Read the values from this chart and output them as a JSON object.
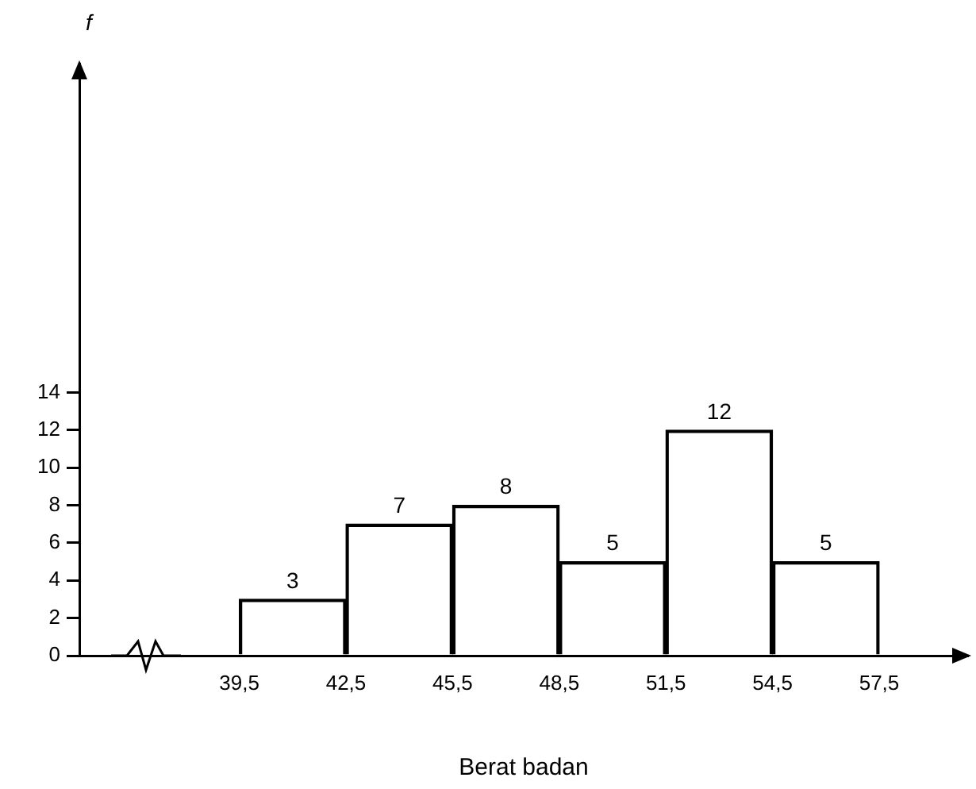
{
  "chart_data": {
    "type": "histogram",
    "xlabel": "Berat badan",
    "ylabel": "f",
    "bins": [
      39.5,
      42.5,
      45.5,
      48.5,
      51.5,
      54.5,
      57.5
    ],
    "values": [
      3,
      7,
      8,
      5,
      12,
      5
    ],
    "color": "#000000",
    "xlim": [
      35,
      60
    ],
    "xticks": [
      {
        "value": 39.5,
        "label": "39,5"
      },
      {
        "value": 42.5,
        "label": "42,5"
      },
      {
        "value": 45.5,
        "label": "45,5"
      },
      {
        "value": 48.5,
        "label": "48,5"
      },
      {
        "value": 51.5,
        "label": "51,5"
      },
      {
        "value": 54.5,
        "label": "54,5"
      },
      {
        "value": 57.5,
        "label": "57,5"
      }
    ],
    "ylim": [
      0,
      31.5
    ],
    "yticks": [
      0,
      2,
      4,
      6,
      8,
      10,
      12,
      14
    ],
    "data_labels": true
  }
}
